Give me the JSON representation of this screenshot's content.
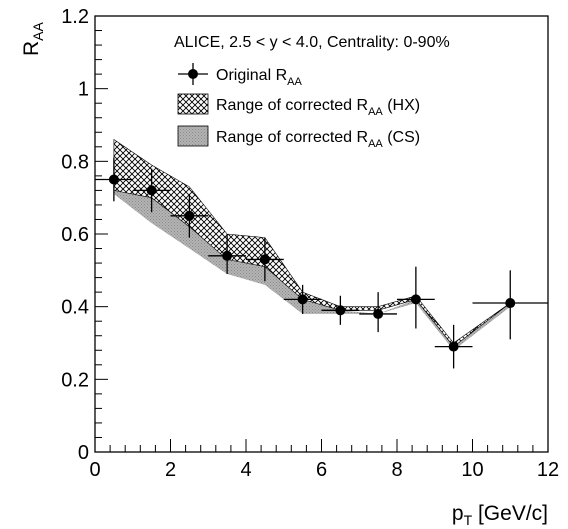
{
  "chart_data": {
    "type": "scatter",
    "header": "ALICE, 2.5 < y < 4.0, Centrality: 0-90%",
    "xlabel": {
      "main": "p",
      "sub": "T",
      "unit": " [GeV/c]"
    },
    "ylabel": {
      "main": "R",
      "sub": "AA"
    },
    "xlim": [
      0,
      12
    ],
    "ylim": [
      0,
      1.2
    ],
    "x_ticks": [
      {
        "value": 0,
        "label": "0"
      },
      {
        "value": 2,
        "label": "2"
      },
      {
        "value": 4,
        "label": "4"
      },
      {
        "value": 6,
        "label": "6"
      },
      {
        "value": 8,
        "label": "8"
      },
      {
        "value": 10,
        "label": "10"
      },
      {
        "value": 12,
        "label": "12"
      }
    ],
    "y_ticks": [
      {
        "value": 0,
        "label": "0"
      },
      {
        "value": 0.2,
        "label": "0.2"
      },
      {
        "value": 0.4,
        "label": "0.4"
      },
      {
        "value": 0.6,
        "label": "0.6"
      },
      {
        "value": 0.8,
        "label": "0.8"
      },
      {
        "value": 1.0,
        "label": "1"
      },
      {
        "value": 1.2,
        "label": "1.2"
      }
    ],
    "legend": [
      {
        "kind": "marker",
        "text": "Original R",
        "sub": "AA",
        "suffix": ""
      },
      {
        "kind": "hatch",
        "text": "Range of corrected R",
        "sub": "AA",
        "suffix": " (HX)"
      },
      {
        "kind": "gray",
        "text": "Range of corrected R",
        "sub": "AA",
        "suffix": " (CS)"
      }
    ],
    "points": [
      {
        "x": 0.5,
        "y": 0.75,
        "xerr": 0.5,
        "ylo": 0.69,
        "yhi": 0.81
      },
      {
        "x": 1.5,
        "y": 0.72,
        "xerr": 0.5,
        "ylo": 0.66,
        "yhi": 0.78
      },
      {
        "x": 2.5,
        "y": 0.65,
        "xerr": 0.5,
        "ylo": 0.59,
        "yhi": 0.71
      },
      {
        "x": 3.5,
        "y": 0.54,
        "xerr": 0.5,
        "ylo": 0.49,
        "yhi": 0.6
      },
      {
        "x": 4.5,
        "y": 0.53,
        "xerr": 0.5,
        "ylo": 0.47,
        "yhi": 0.59
      },
      {
        "x": 5.5,
        "y": 0.42,
        "xerr": 0.5,
        "ylo": 0.38,
        "yhi": 0.46
      },
      {
        "x": 6.5,
        "y": 0.39,
        "xerr": 0.5,
        "ylo": 0.35,
        "yhi": 0.43
      },
      {
        "x": 7.5,
        "y": 0.38,
        "xerr": 0.5,
        "ylo": 0.33,
        "yhi": 0.44
      },
      {
        "x": 8.5,
        "y": 0.42,
        "xerr": 0.5,
        "ylo": 0.34,
        "yhi": 0.51
      },
      {
        "x": 9.5,
        "y": 0.29,
        "xerr": 0.5,
        "ylo": 0.23,
        "yhi": 0.35
      },
      {
        "x": 11.0,
        "y": 0.41,
        "xerr": 1.0,
        "ylo": 0.31,
        "yhi": 0.5
      }
    ],
    "band_hx": {
      "x": [
        0.5,
        1.5,
        2.5,
        3.5,
        4.5,
        5.5,
        6.5,
        7.5,
        8.5,
        9.5,
        11.0
      ],
      "lo": [
        0.72,
        0.7,
        0.62,
        0.53,
        0.51,
        0.42,
        0.39,
        0.39,
        0.42,
        0.29,
        0.41
      ],
      "hi": [
        0.86,
        0.79,
        0.73,
        0.6,
        0.59,
        0.44,
        0.4,
        0.4,
        0.43,
        0.3,
        0.41
      ]
    },
    "band_cs": {
      "x": [
        0.5,
        1.5,
        2.5,
        3.5,
        4.5,
        5.5,
        6.5,
        7.5,
        8.5,
        9.5,
        11.0
      ],
      "lo": [
        0.71,
        0.63,
        0.56,
        0.49,
        0.46,
        0.38,
        0.38,
        0.38,
        0.41,
        0.28,
        0.4
      ],
      "hi": [
        0.75,
        0.71,
        0.64,
        0.54,
        0.53,
        0.42,
        0.39,
        0.38,
        0.42,
        0.29,
        0.41
      ]
    },
    "colors": {
      "marker": "#000000",
      "gray_fill": "#b4b4b4",
      "hatch": "#000000"
    }
  }
}
